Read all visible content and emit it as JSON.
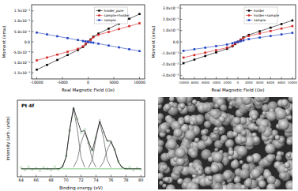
{
  "chart_data": [
    {
      "type": "line",
      "marker": "square",
      "legend": "top",
      "x_label": "Real Magnetic Field (Oe)",
      "y_label": "Moment (emu)",
      "x": [
        -10000,
        -8000,
        -6000,
        -4000,
        -2000,
        -1000,
        -500,
        0,
        500,
        1000,
        2000,
        4000,
        6000,
        8000,
        10000
      ],
      "xlim": [
        -11000,
        11000
      ],
      "xticks": [
        -10000,
        -5000,
        0,
        5000,
        10000
      ],
      "ylim": [
        -0.0018,
        0.0018
      ],
      "yticks": [
        {
          "value": -0.0015,
          "label": "-1.5x10⁻³"
        },
        {
          "value": -0.001,
          "label": "-1.0x10⁻³"
        },
        {
          "value": -0.0005,
          "label": "-5.0x10⁻⁴"
        },
        {
          "value": 0,
          "label": "0.0"
        },
        {
          "value": 0.0005,
          "label": "5.0x10⁻⁴"
        },
        {
          "value": 0.001,
          "label": "1.0x10⁻³"
        },
        {
          "value": 0.0015,
          "label": "1.5x10⁻³"
        }
      ],
      "series": [
        {
          "name": "holder_pure",
          "color": "#000000",
          "values": [
            -0.00135,
            -0.00112,
            -0.00088,
            -0.00064,
            -0.0004,
            -0.00025,
            -0.00012,
            0,
            0.00012,
            0.00025,
            0.0004,
            0.00064,
            0.00088,
            0.00112,
            0.00135
          ]
        },
        {
          "name": "sample+holder",
          "color": "#d42020",
          "values": [
            -0.0009,
            -0.00076,
            -0.00062,
            -0.00048,
            -0.00034,
            -0.00022,
            -0.0001,
            0,
            0.0001,
            0.00022,
            0.00034,
            0.00048,
            0.00062,
            0.00076,
            0.0009
          ]
        },
        {
          "name": "sample",
          "color": "#1f3fbf",
          "values": [
            0.00045,
            0.00036,
            0.00027,
            0.00018,
            9e-05,
            4e-05,
            2e-05,
            0,
            -2e-05,
            -4e-05,
            -9e-05,
            -0.00018,
            -0.00027,
            -0.00036,
            -0.00045
          ]
        }
      ]
    },
    {
      "type": "line",
      "marker": "square",
      "legend": "top",
      "x_label": "Real Magnetic Field (Oe)",
      "y_label": "Moment (emu)",
      "x": [
        -10000,
        -8000,
        -6000,
        -4000,
        -2000,
        -1000,
        -500,
        0,
        500,
        1000,
        2000,
        4000,
        6000,
        8000,
        10000
      ],
      "xlim": [
        -10600,
        10600
      ],
      "xticks": [
        -10000,
        -8000,
        -6000,
        -4000,
        -2000,
        0,
        2000,
        4000,
        6000,
        8000,
        10000
      ],
      "ylim": [
        -0.0033,
        0.0033
      ],
      "yticks": [
        {
          "value": -0.003,
          "label": "-3.0x10⁻³"
        },
        {
          "value": -0.002,
          "label": "-2.0x10⁻³"
        },
        {
          "value": -0.001,
          "label": "-1.0x10⁻³"
        },
        {
          "value": 0,
          "label": "0.0"
        },
        {
          "value": 0.001,
          "label": "1.0x10⁻³"
        },
        {
          "value": 0.002,
          "label": "2.0x10⁻³"
        },
        {
          "value": 0.003,
          "label": "3.0x10⁻³"
        }
      ],
      "series": [
        {
          "name": "holder",
          "color": "#000000",
          "values": [
            -0.0019,
            -0.00158,
            -0.00126,
            -0.00094,
            -0.00062,
            -0.0004,
            -0.0002,
            0,
            0.0002,
            0.0004,
            0.00062,
            0.00094,
            0.00126,
            0.00158,
            0.0019
          ]
        },
        {
          "name": "holder+sample",
          "color": "#d42020",
          "values": [
            -0.0014,
            -0.00118,
            -0.00096,
            -0.00074,
            -0.00052,
            -0.00034,
            -0.00017,
            0,
            0.00017,
            0.00034,
            0.00052,
            0.00074,
            0.00096,
            0.00118,
            0.0014
          ]
        },
        {
          "name": "sample",
          "color": "#1f3fbf",
          "values": [
            -0.0008,
            -0.00066,
            -0.00052,
            -0.00038,
            -0.00024,
            -0.00012,
            -5e-05,
            0,
            5e-05,
            0.00012,
            0.00024,
            0.00038,
            0.00052,
            0.00066,
            0.0008
          ]
        }
      ]
    },
    {
      "type": "line",
      "title": "Pt 4f",
      "tick_labels": "x",
      "x_label": "Binding energy (eV)",
      "y_label": "Intensity (arb. units)",
      "x": [
        64,
        64.5,
        65,
        65.5,
        66,
        66.5,
        67,
        67.5,
        68,
        68.5,
        69,
        69.5,
        70,
        70.5,
        71,
        71.5,
        72,
        72.5,
        73,
        73.5,
        74,
        74.5,
        75,
        75.5,
        76,
        76.5,
        77,
        77.5,
        78,
        78.5,
        79,
        79.5,
        80
      ],
      "xlim": [
        63.5,
        80.5
      ],
      "xticks": [
        64,
        66,
        68,
        70,
        72,
        74,
        76,
        78,
        80
      ],
      "ylim": [
        0,
        1.15
      ],
      "series": [
        {
          "type": "scatter",
          "marker": "circle",
          "color": "#7fb77e",
          "values": [
            0.14,
            0.1,
            0.15,
            0.11,
            0.13,
            0.09,
            0.14,
            0.12,
            0.1,
            0.15,
            0.11,
            0.16,
            0.31,
            0.7,
            1.02,
            0.87,
            0.66,
            0.71,
            0.51,
            0.4,
            0.59,
            0.85,
            0.67,
            0.55,
            0.52,
            0.41,
            0.23,
            0.15,
            0.12,
            0.14,
            0.1,
            0.13,
            0.11
          ]
        },
        {
          "type": "line",
          "color": "#4caf50",
          "values": [
            0.12,
            0.12,
            0.12,
            0.12,
            0.12,
            0.12,
            0.12,
            0.12,
            0.12,
            0.12,
            0.12,
            0.12,
            0.12,
            0.12,
            0.12,
            0.12,
            0.12,
            0.12,
            0.12,
            0.12,
            0.12,
            0.12,
            0.12,
            0.12,
            0.12,
            0.12,
            0.12,
            0.12,
            0.12,
            0.12,
            0.12,
            0.12,
            0.12
          ]
        },
        {
          "type": "line",
          "color": "#555555",
          "values": [
            null,
            null,
            null,
            null,
            null,
            null,
            null,
            null,
            null,
            null,
            null,
            0.142,
            0.292,
            0.716,
            1.02,
            0.716,
            0.292,
            0.142,
            null,
            null,
            null,
            null,
            null,
            null,
            null,
            null,
            null,
            null,
            null,
            null,
            null,
            null,
            null
          ]
        },
        {
          "type": "line",
          "color": "#555555",
          "values": [
            null,
            null,
            null,
            null,
            null,
            null,
            null,
            null,
            null,
            null,
            null,
            null,
            null,
            null,
            0.144,
            0.257,
            0.509,
            0.67,
            0.509,
            0.257,
            0.144,
            null,
            null,
            null,
            null,
            null,
            null,
            null,
            null,
            null,
            null,
            null,
            null
          ]
        },
        {
          "type": "line",
          "color": "#555555",
          "values": [
            null,
            null,
            null,
            null,
            null,
            null,
            null,
            null,
            null,
            null,
            null,
            null,
            null,
            null,
            null,
            null,
            null,
            null,
            0.137,
            0.254,
            0.583,
            0.82,
            0.583,
            0.254,
            0.137,
            null,
            null,
            null,
            null,
            null,
            null,
            null,
            null
          ]
        },
        {
          "type": "line",
          "color": "#555555",
          "values": [
            null,
            null,
            null,
            null,
            null,
            null,
            null,
            null,
            null,
            null,
            null,
            null,
            null,
            null,
            null,
            null,
            null,
            null,
            null,
            null,
            null,
            0.138,
            0.22,
            0.403,
            0.52,
            0.403,
            0.22,
            0.138,
            null,
            null,
            null,
            null,
            null
          ]
        },
        {
          "type": "line",
          "color": "#000000",
          "values": [
            0.12,
            0.12,
            0.12,
            0.12,
            0.12,
            0.12,
            0.12,
            0.12,
            0.12,
            0.12,
            0.121,
            0.142,
            0.292,
            0.718,
            1.044,
            0.853,
            0.681,
            0.692,
            0.526,
            0.391,
            0.607,
            0.84,
            0.683,
            0.537,
            0.537,
            0.403,
            0.22,
            0.138,
            0.12,
            0.12,
            0.12,
            0.12,
            0.12
          ]
        }
      ]
    }
  ]
}
